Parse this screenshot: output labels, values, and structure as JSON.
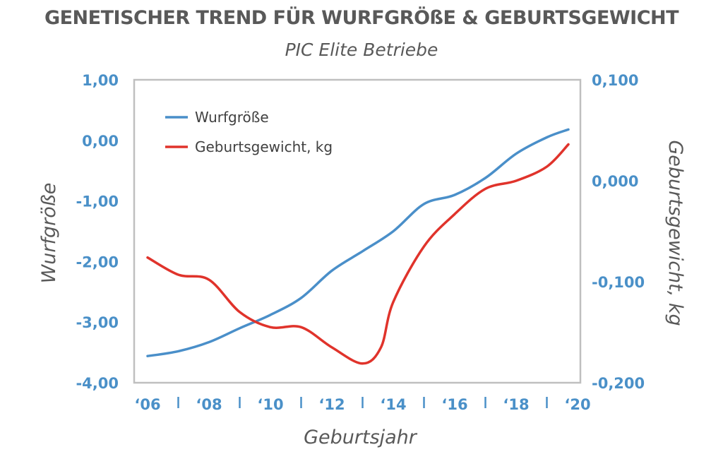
{
  "chart_data": {
    "type": "line",
    "title": "GENETISCHER TREND FÜR WURFGRÖßE & GEBURTSGEWICHT",
    "subtitle": "PIC Elite Betriebe",
    "xlabel": "Geburtsjahr",
    "ylabel_left": "Wurfgröße",
    "ylabel_right": "Geburtsgewicht, kg",
    "x_tick_labels": [
      "‘06",
      "‘08",
      "‘10",
      "‘12",
      "‘14",
      "‘16",
      "‘18",
      "‘20"
    ],
    "x_tick_values": [
      2006,
      2008,
      2010,
      2012,
      2014,
      2016,
      2018,
      2020
    ],
    "xlim": [
      2006,
      2020
    ],
    "ylim_left": [
      -4,
      1
    ],
    "ylim_right": [
      -0.2,
      0.1
    ],
    "y_left_tick_values": [
      1,
      0,
      -1,
      -2,
      -3,
      -4
    ],
    "y_left_tick_labels": [
      "1,00",
      "0,00",
      "-1,00",
      "-2,00",
      "-3,00",
      "-4,00"
    ],
    "y_right_tick_values": [
      0.1,
      0,
      -0.1,
      -0.2
    ],
    "y_right_tick_labels": [
      "0,100",
      "0,000",
      "-0,100",
      "-0,200"
    ],
    "legend_position": "top-left",
    "grid": false,
    "series": [
      {
        "name": "Wurfgröße",
        "axis": "left",
        "color": "#4a8fc9",
        "x": [
          2006,
          2007,
          2008,
          2009,
          2010,
          2011,
          2012,
          2013,
          2014,
          2015,
          2016,
          2017,
          2018,
          2019,
          2019.7
        ],
        "y": [
          -3.56,
          -3.48,
          -3.33,
          -3.1,
          -2.88,
          -2.6,
          -2.15,
          -1.83,
          -1.5,
          -1.05,
          -0.9,
          -0.62,
          -0.22,
          0.05,
          0.18
        ]
      },
      {
        "name": "Geburtsgewicht, kg",
        "axis": "right",
        "color": "#e0332b",
        "x": [
          2006,
          2007,
          2008,
          2009,
          2010,
          2011,
          2012,
          2013,
          2013.6,
          2014,
          2015,
          2016,
          2017,
          2018,
          2019,
          2019.7
        ],
        "y": [
          -0.076,
          -0.093,
          -0.098,
          -0.13,
          -0.145,
          -0.145,
          -0.165,
          -0.181,
          -0.165,
          -0.12,
          -0.065,
          -0.033,
          -0.008,
          0.0,
          0.014,
          0.036
        ]
      }
    ]
  }
}
